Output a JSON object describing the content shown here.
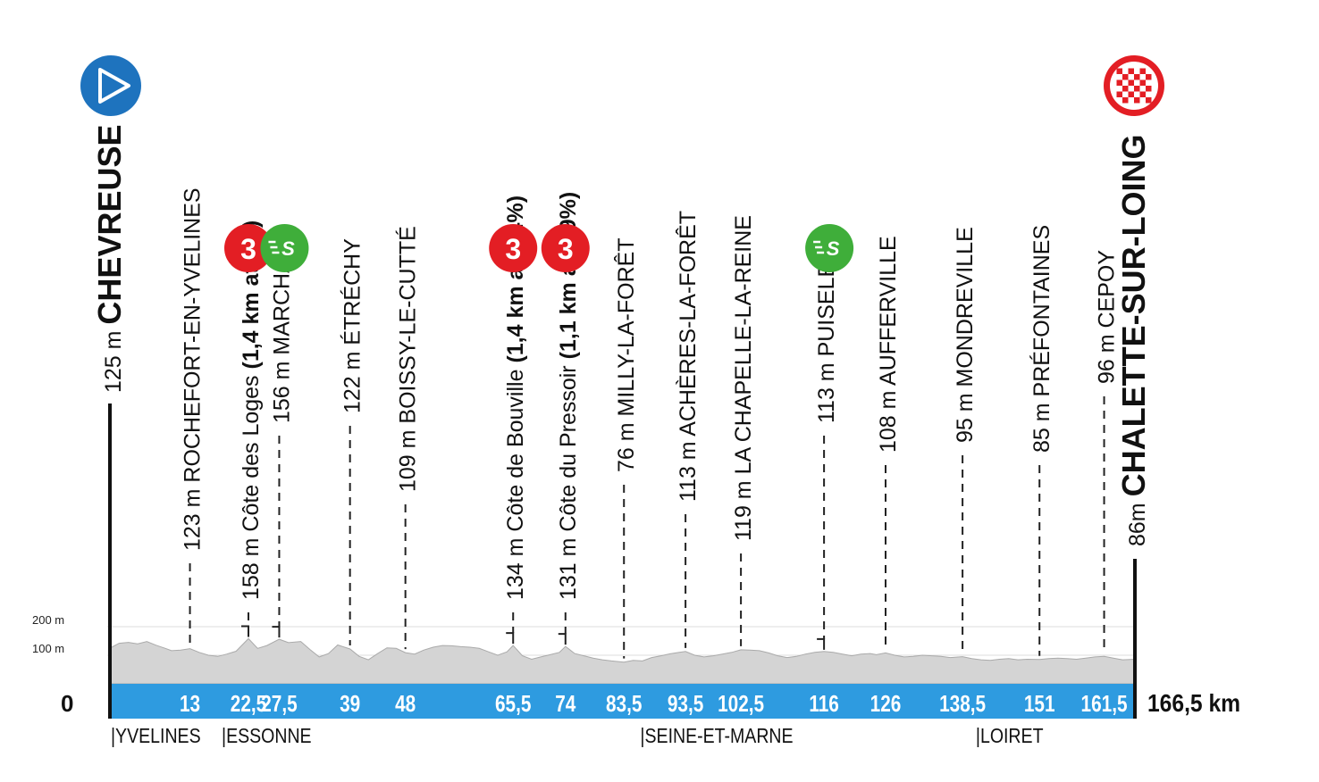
{
  "chart_data": {
    "type": "area",
    "title": "",
    "xlabel": "",
    "ylabel": "",
    "unit_x": "km",
    "xlim": [
      0,
      166.5
    ],
    "ylim": [
      0,
      200
    ],
    "y_ticks": [
      {
        "value": 200,
        "label": "200 m"
      },
      {
        "value": 100,
        "label": "100 m"
      }
    ],
    "zero_label": "0",
    "total_label": "166,5 km",
    "colors": {
      "band": "#2e9be0",
      "profile": "#d4d4d4",
      "profile_edge": "#aaaaaa",
      "kom": "#e31e24",
      "sprint": "#3fae3a",
      "start": "#1e73be",
      "finish": "#e31e24"
    },
    "start": {
      "km": 0,
      "name": "CHEVREUSE",
      "altitude": "125 m",
      "icon": "play-icon"
    },
    "finish": {
      "km": 166.5,
      "name": "CHALETTE-SUR-LOING",
      "altitude": "86m",
      "icon": "checkered-flag-icon"
    },
    "waypoints": [
      {
        "km": 13,
        "km_label": "13",
        "altitude": "123 m",
        "name": "ROCHEFORT-EN-YVELINES",
        "detail": "",
        "badge": ""
      },
      {
        "km": 22.5,
        "km_label": "22,5",
        "altitude": "158 m",
        "name": "Côte des Loges",
        "detail": "(1,4 km at 5%)",
        "badge": "kom",
        "badge_text": "3"
      },
      {
        "km": 27.5,
        "km_label": "27,5",
        "altitude": "156 m",
        "name": "MARCHAIS",
        "detail": "",
        "badge": "sprint",
        "badge_text": "S"
      },
      {
        "km": 39,
        "km_label": "39",
        "altitude": "122 m",
        "name": "ÉTRÉCHY",
        "detail": "",
        "badge": ""
      },
      {
        "km": 48,
        "km_label": "48",
        "altitude": "109 m",
        "name": "BOISSY-LE-CUTTÉ",
        "detail": "",
        "badge": ""
      },
      {
        "km": 65.5,
        "km_label": "65,5",
        "altitude": "134 m",
        "name": "Côte de Bouville",
        "detail": "(1,4 km at 4,4%)",
        "badge": "kom",
        "badge_text": "3"
      },
      {
        "km": 74,
        "km_label": "74",
        "altitude": "131 m",
        "name": "Côte du Pressoir",
        "detail": "(1,1 km at 5,9%)",
        "badge": "kom",
        "badge_text": "3"
      },
      {
        "km": 83.5,
        "km_label": "83,5",
        "altitude": "76 m",
        "name": "MILLY-LA-FORÊT",
        "detail": "",
        "badge": ""
      },
      {
        "km": 93.5,
        "km_label": "93,5",
        "altitude": "113 m",
        "name": "ACHÈRES-LA-FORÊT",
        "detail": "",
        "badge": ""
      },
      {
        "km": 102.5,
        "km_label": "102,5",
        "altitude": "119 m",
        "name": "LA CHAPELLE-LA-REINE",
        "detail": "",
        "badge": ""
      },
      {
        "km": 116,
        "km_label": "116",
        "altitude": "113 m",
        "name": "PUISELET",
        "detail": "",
        "badge": "sprint",
        "badge_text": "S"
      },
      {
        "km": 126,
        "km_label": "126",
        "altitude": "108 m",
        "name": "AUFFERVILLE",
        "detail": "",
        "badge": ""
      },
      {
        "km": 138.5,
        "km_label": "138,5",
        "altitude": "95 m",
        "name": "MONDREVILLE",
        "detail": "",
        "badge": ""
      },
      {
        "km": 151,
        "km_label": "151",
        "altitude": "85 m",
        "name": "PRÉFONTAINES",
        "detail": "",
        "badge": ""
      },
      {
        "km": 161.5,
        "km_label": "161,5",
        "altitude": "96 m",
        "name": "CEPOY",
        "detail": "",
        "badge": ""
      }
    ],
    "regions": [
      {
        "km": 0,
        "label": "|YVELINES"
      },
      {
        "km": 18,
        "label": "|ESSONNE"
      },
      {
        "km": 86,
        "label": "|SEINE-ET-MARNE"
      },
      {
        "km": 140.5,
        "label": "|LOIRET"
      }
    ],
    "profile": [
      [
        0,
        125
      ],
      [
        1.5,
        142
      ],
      [
        3,
        145
      ],
      [
        4.5,
        140
      ],
      [
        6,
        148
      ],
      [
        7.5,
        135
      ],
      [
        9,
        124
      ],
      [
        10,
        116
      ],
      [
        11.5,
        118
      ],
      [
        13,
        123
      ],
      [
        14.5,
        110
      ],
      [
        16,
        100
      ],
      [
        17.5,
        96
      ],
      [
        19,
        104
      ],
      [
        20.5,
        114
      ],
      [
        22.5,
        158
      ],
      [
        24,
        124
      ],
      [
        25.5,
        134
      ],
      [
        27.5,
        156
      ],
      [
        29,
        144
      ],
      [
        31,
        148
      ],
      [
        32.5,
        120
      ],
      [
        34,
        94
      ],
      [
        35.5,
        106
      ],
      [
        37,
        136
      ],
      [
        39,
        122
      ],
      [
        40.5,
        96
      ],
      [
        42,
        84
      ],
      [
        43.5,
        106
      ],
      [
        45,
        126
      ],
      [
        46.5,
        124
      ],
      [
        48,
        109
      ],
      [
        49.5,
        104
      ],
      [
        51,
        118
      ],
      [
        52.5,
        128
      ],
      [
        54,
        134
      ],
      [
        55.5,
        133
      ],
      [
        57,
        130
      ],
      [
        58.5,
        128
      ],
      [
        60,
        124
      ],
      [
        61.5,
        112
      ],
      [
        63,
        100
      ],
      [
        64.5,
        112
      ],
      [
        65.5,
        134
      ],
      [
        67,
        98
      ],
      [
        68.5,
        86
      ],
      [
        70,
        94
      ],
      [
        71.5,
        102
      ],
      [
        73,
        110
      ],
      [
        74,
        131
      ],
      [
        75.5,
        106
      ],
      [
        77,
        98
      ],
      [
        78.5,
        90
      ],
      [
        80,
        84
      ],
      [
        81.5,
        80
      ],
      [
        83.5,
        76
      ],
      [
        85,
        82
      ],
      [
        86.5,
        80
      ],
      [
        88,
        92
      ],
      [
        89.5,
        98
      ],
      [
        91,
        105
      ],
      [
        92.5,
        110
      ],
      [
        93.5,
        113
      ],
      [
        95,
        100
      ],
      [
        96.5,
        94
      ],
      [
        98,
        98
      ],
      [
        99.5,
        104
      ],
      [
        101,
        110
      ],
      [
        102.5,
        119
      ],
      [
        104,
        118
      ],
      [
        105.5,
        116
      ],
      [
        107,
        108
      ],
      [
        108.5,
        98
      ],
      [
        110,
        92
      ],
      [
        111.5,
        96
      ],
      [
        113,
        104
      ],
      [
        114.5,
        110
      ],
      [
        116,
        113
      ],
      [
        117.5,
        110
      ],
      [
        119,
        104
      ],
      [
        120.5,
        98
      ],
      [
        122,
        104
      ],
      [
        123.5,
        106
      ],
      [
        124.5,
        102
      ],
      [
        126,
        108
      ],
      [
        127.5,
        100
      ],
      [
        129,
        94
      ],
      [
        130.5,
        96
      ],
      [
        132,
        100
      ],
      [
        133.5,
        98
      ],
      [
        135,
        96
      ],
      [
        136.5,
        92
      ],
      [
        138.5,
        95
      ],
      [
        140,
        88
      ],
      [
        141.5,
        84
      ],
      [
        143,
        82
      ],
      [
        144.5,
        86
      ],
      [
        146,
        88
      ],
      [
        147.5,
        84
      ],
      [
        149,
        86
      ],
      [
        151,
        85
      ],
      [
        152.5,
        88
      ],
      [
        154,
        90
      ],
      [
        155.5,
        88
      ],
      [
        157,
        86
      ],
      [
        158.5,
        90
      ],
      [
        160,
        94
      ],
      [
        161.5,
        96
      ],
      [
        163,
        90
      ],
      [
        164.5,
        84
      ],
      [
        166.5,
        86
      ]
    ]
  }
}
